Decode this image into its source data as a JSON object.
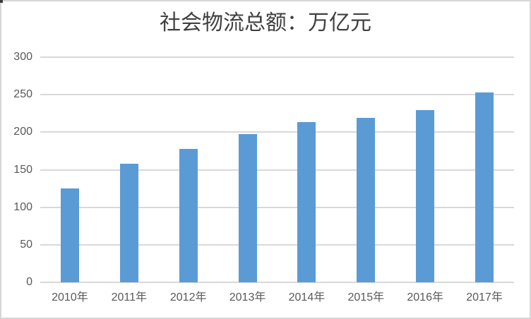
{
  "chart": {
    "title": "社会物流总额：万亿元"
  },
  "chart_data": {
    "type": "bar",
    "title": "社会物流总额：万亿元",
    "categories": [
      "2010年",
      "2011年",
      "2012年",
      "2013年",
      "2014年",
      "2015年",
      "2016年",
      "2017年"
    ],
    "values": [
      125.4,
      158.4,
      177.3,
      197.8,
      213.5,
      219.2,
      229.7,
      252.8
    ],
    "xlabel": "",
    "ylabel": "",
    "ylim": [
      0,
      300
    ],
    "yticks": [
      0,
      50,
      100,
      150,
      200,
      250,
      300
    ],
    "grid": true,
    "legend": false,
    "colors": {
      "bar": "#5B9BD5",
      "gridline": "#D9D9D9",
      "axis_text": "#595959",
      "title_text": "#404040",
      "frame_border": "#D6D6D6"
    }
  }
}
